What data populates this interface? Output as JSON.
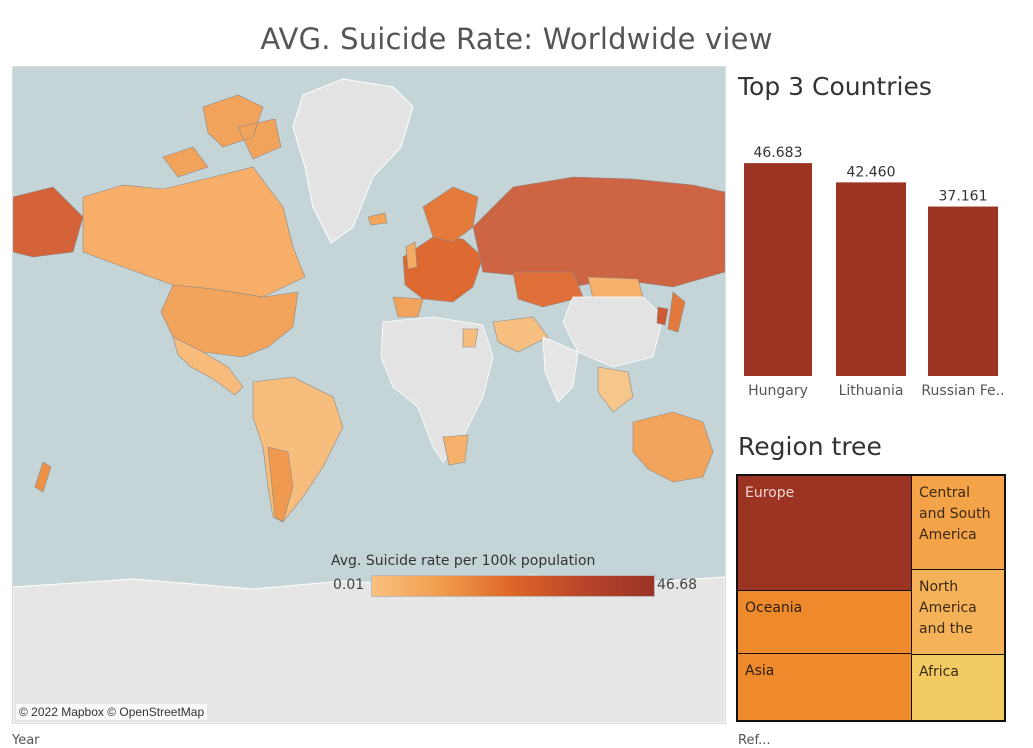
{
  "page": {
    "title": "AVG. Suicide Rate: Worldwide view"
  },
  "map": {
    "attribution": "© 2022 Mapbox © OpenStreetMap",
    "legend": {
      "title": "Avg. Suicide rate per 100k population",
      "min_label": "0.01",
      "max_label": "46.68",
      "colors": [
        "#f9c27e",
        "#f09b4d",
        "#de6528",
        "#b8452a",
        "#9c3325"
      ]
    },
    "ocean_color": "#c5d5d7",
    "no_data_color": "#e3e3e3"
  },
  "top_countries": {
    "title": "Top 3 Countries",
    "bar_color": "#9c3424"
  },
  "chart_data": {
    "type": "bar",
    "categories": [
      "Hungary",
      "Lithuania",
      "Russian Fe.."
    ],
    "values": [
      46.683,
      42.46,
      37.161
    ],
    "value_labels": [
      "46.683",
      "42.460",
      "37.161"
    ],
    "ylim": [
      0,
      50
    ]
  },
  "region_tree": {
    "title": "Region tree",
    "tiles": [
      {
        "label": "Europe",
        "color": "#9c3424",
        "text_color": "#f2d6cc"
      },
      {
        "label": "Central and South America",
        "color": "#f4a348",
        "text_color": "#3a2a12"
      },
      {
        "label": "North America and the",
        "color": "#f6b258",
        "text_color": "#3a2a12"
      },
      {
        "label": "Oceania",
        "color": "#ee8a2c",
        "text_color": "#2e1d0c"
      },
      {
        "label": "Asia",
        "color": "#ee8a2c",
        "text_color": "#2e1d0c"
      },
      {
        "label": "Africa",
        "color": "#f2cc62",
        "text_color": "#3a2a12"
      }
    ]
  },
  "footer": {
    "left_label": "Year",
    "right_label": "Ref..."
  }
}
